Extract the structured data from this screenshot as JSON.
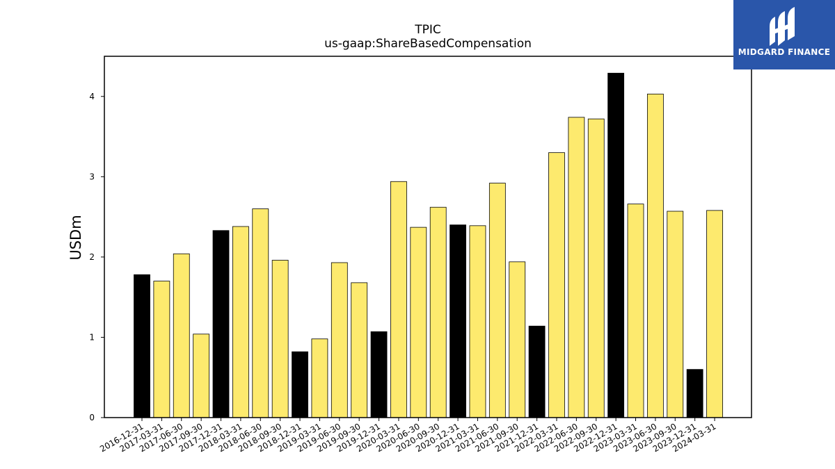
{
  "brand": {
    "name": "MIDGARD FINANCE",
    "logo_icon": "midgard-logo-icon",
    "color": "#2a56aa"
  },
  "colors": {
    "highlight": "#000000",
    "bar": "#fdea6e",
    "edge": "#000000"
  },
  "chart_data": {
    "type": "bar",
    "title": "TPIC",
    "subtitle": "us-gaap:ShareBasedCompensation",
    "xlabel": "",
    "ylabel": "USDm",
    "ylim": [
      0,
      4.5
    ],
    "yticks": [
      0,
      1,
      2,
      3,
      4
    ],
    "grid": false,
    "categories": [
      "2016-12-31",
      "2017-03-31",
      "2017-06-30",
      "2017-09-30",
      "2017-12-31",
      "2018-03-31",
      "2018-06-30",
      "2018-09-30",
      "2018-12-31",
      "2019-03-31",
      "2019-06-30",
      "2019-09-30",
      "2019-12-31",
      "2020-03-31",
      "2020-06-30",
      "2020-09-30",
      "2020-12-31",
      "2021-03-31",
      "2021-06-30",
      "2021-09-30",
      "2021-12-31",
      "2022-03-31",
      "2022-06-30",
      "2022-09-30",
      "2022-12-31",
      "2023-03-31",
      "2023-06-30",
      "2023-09-30",
      "2023-12-31",
      "2024-03-31"
    ],
    "values": [
      1.78,
      1.7,
      2.04,
      1.04,
      2.33,
      2.38,
      2.6,
      1.96,
      0.82,
      0.98,
      1.93,
      1.68,
      1.07,
      2.94,
      2.37,
      2.62,
      2.4,
      2.39,
      2.92,
      1.94,
      1.14,
      3.3,
      3.74,
      3.72,
      4.29,
      2.66,
      4.03,
      2.57,
      0.6,
      2.58
    ],
    "highlighted": [
      true,
      false,
      false,
      false,
      true,
      false,
      false,
      false,
      true,
      false,
      false,
      false,
      true,
      false,
      false,
      false,
      true,
      false,
      false,
      false,
      true,
      false,
      false,
      false,
      true,
      false,
      false,
      false,
      true,
      false
    ]
  }
}
